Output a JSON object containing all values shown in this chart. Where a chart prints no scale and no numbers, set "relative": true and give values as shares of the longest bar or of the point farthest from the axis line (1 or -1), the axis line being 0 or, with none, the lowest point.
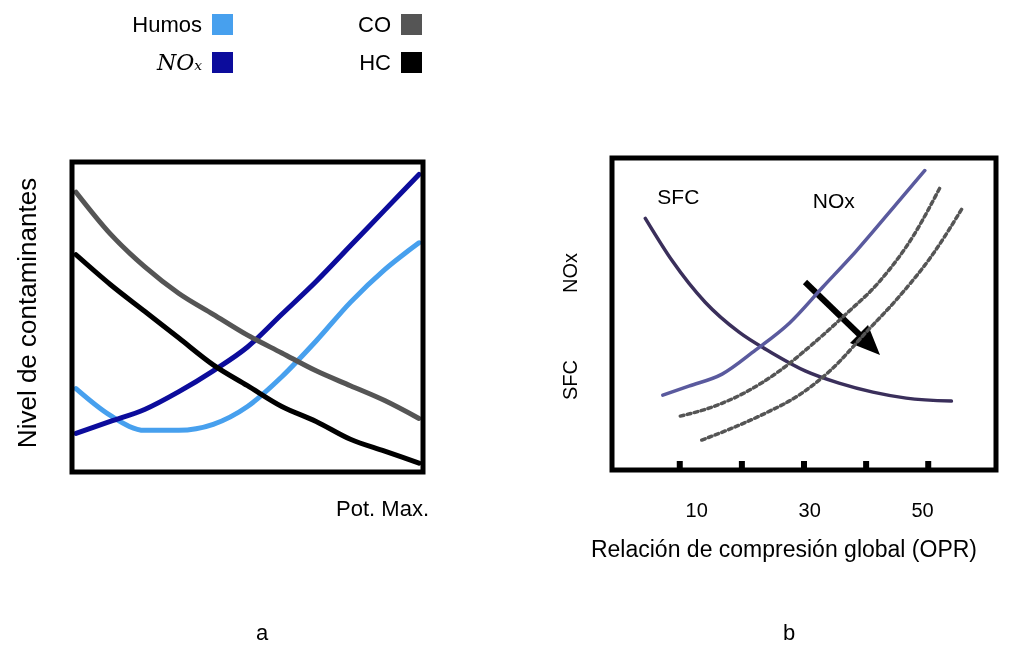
{
  "chart_data": [
    {
      "type": "line",
      "relative": true,
      "xlabel": "Pot. Max.",
      "ylabel": "Nivel de contaminantes",
      "legend": "top",
      "annotations": [
        "a"
      ],
      "categories": [
        null,
        null,
        null,
        null,
        null,
        null,
        null,
        null,
        null,
        null,
        null
      ],
      "series": [
        {
          "name": "Humos",
          "color": "#47a0ee",
          "values": [
            0.28,
            0.19,
            0.14,
            0.14,
            0.16,
            0.22,
            0.32,
            0.44,
            0.57,
            0.68,
            0.77
          ]
        },
        {
          "name": "NOₓ",
          "color": "#0c0c9c",
          "values": [
            0.13,
            0.17,
            0.21,
            0.27,
            0.34,
            0.42,
            0.53,
            0.64,
            0.76,
            0.88,
            1.0
          ]
        },
        {
          "name": "CO",
          "color": "#555555",
          "values": [
            0.94,
            0.8,
            0.69,
            0.6,
            0.53,
            0.46,
            0.4,
            0.34,
            0.29,
            0.24,
            0.18
          ]
        },
        {
          "name": "HC",
          "color": "#000000",
          "values": [
            0.73,
            0.63,
            0.54,
            0.45,
            0.36,
            0.29,
            0.22,
            0.17,
            0.11,
            0.07,
            0.03
          ]
        }
      ]
    },
    {
      "type": "line",
      "relative": true,
      "xlabel": "Relación de compresión global (OPR)",
      "ylabel": "NOx",
      "annotations": [
        "SFC",
        "b"
      ],
      "xlim": [
        -5,
        63
      ],
      "xticks": [
        {
          "value": 7,
          "label": null
        },
        10,
        {
          "value": 18,
          "label": null
        },
        {
          "value": 29,
          "label": null
        },
        30,
        {
          "value": 40,
          "label": null
        },
        50,
        {
          "value": 51,
          "label": null
        }
      ],
      "series": [
        {
          "name": "SFC",
          "color": "#3a2f5b",
          "x": [
            0.9,
            5.6,
            11.5,
            17.5,
            23.4,
            29.3,
            35.2,
            41.2,
            47.1,
            55.1
          ],
          "values": [
            0.84,
            0.7,
            0.56,
            0.46,
            0.39,
            0.33,
            0.29,
            0.26,
            0.24,
            0.23
          ]
        },
        {
          "name": "NOx",
          "color": "#5a5a9e",
          "x": [
            4.0,
            8.6,
            14.5,
            20.4,
            26.4,
            32.3,
            38.2,
            44.1,
            50.4
          ],
          "values": [
            0.25,
            0.28,
            0.32,
            0.4,
            0.49,
            0.61,
            0.73,
            0.86,
            1.0
          ]
        },
        {
          "color": "#555555",
          "line_style": "dashed",
          "x": [
            7.1,
            12.7,
            18.7,
            24.6,
            30.5,
            36.4,
            42.4,
            48.3,
            53.0
          ],
          "values": [
            0.18,
            0.21,
            0.26,
            0.33,
            0.42,
            0.52,
            0.63,
            0.78,
            0.94
          ]
        },
        {
          "color": "#555555",
          "line_style": "dashed",
          "x": [
            10.9,
            16.3,
            22.2,
            28.1,
            34.1,
            40.0,
            45.9,
            51.8,
            56.9
          ],
          "values": [
            0.1,
            0.14,
            0.19,
            0.25,
            0.34,
            0.46,
            0.58,
            0.72,
            0.87
          ]
        }
      ]
    }
  ]
}
